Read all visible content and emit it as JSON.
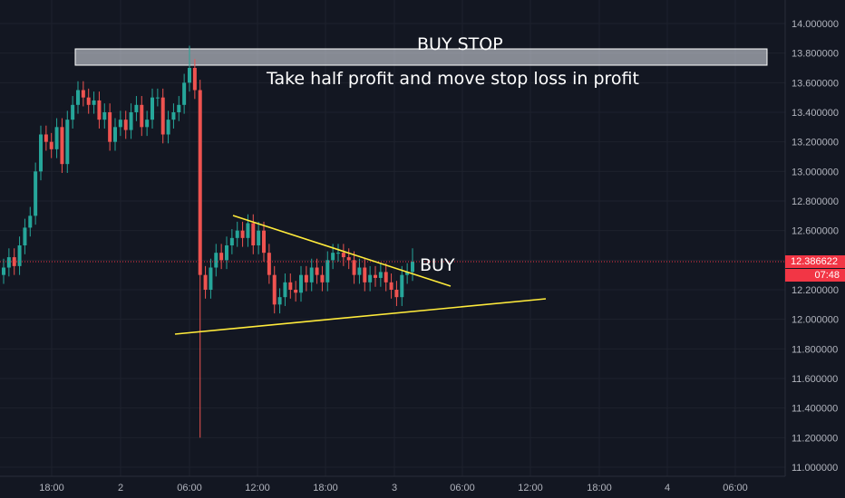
{
  "chart_data": {
    "type": "candlestick",
    "title": "",
    "xlabel": "",
    "ylabel": "",
    "ylim": [
      10.95,
      14.15
    ],
    "y_ticks": [
      "14.000000",
      "13.800000",
      "13.600000",
      "13.400000",
      "13.200000",
      "13.000000",
      "12.800000",
      "12.600000",
      "12.400000",
      "12.200000",
      "12.000000",
      "11.800000",
      "11.600000",
      "11.400000",
      "11.200000",
      "11.000000"
    ],
    "x_ticks": [
      "18:00",
      "2",
      "06:00",
      "12:00",
      "18:00",
      "3",
      "06:00",
      "12:00",
      "18:00",
      "4",
      "06:00"
    ],
    "last_price": "12.386622",
    "countdown": "07:48",
    "colors": {
      "up": "#26a69a",
      "down": "#ef5350",
      "trendline": "#ffeb3b",
      "price_line": "#f23645"
    },
    "candles_close": [
      12.35,
      12.42,
      12.36,
      12.5,
      12.62,
      12.7,
      13.0,
      13.25,
      13.2,
      13.15,
      13.3,
      13.05,
      13.35,
      13.45,
      13.55,
      13.5,
      13.45,
      13.48,
      13.35,
      13.4,
      13.2,
      13.3,
      13.35,
      13.28,
      13.4,
      13.45,
      13.3,
      13.35,
      13.5,
      13.5,
      13.25,
      13.35,
      13.4,
      13.45,
      13.6,
      13.7,
      13.55,
      12.3,
      12.2,
      12.35,
      12.45,
      12.4,
      12.5,
      12.55,
      12.6,
      12.55,
      12.65,
      12.5,
      12.6,
      12.45,
      12.3,
      12.1,
      12.15,
      12.25,
      12.2,
      12.18,
      12.3,
      12.25,
      12.35,
      12.3,
      12.25,
      12.4,
      12.45,
      12.45,
      12.42,
      12.4,
      12.3,
      12.35,
      12.25,
      12.3,
      12.28,
      12.32,
      12.25,
      12.2,
      12.15,
      12.3,
      12.32,
      12.39
    ],
    "annotations": [
      "BUY STOP",
      "Take half profit and move stop loss in profit",
      "BUY"
    ]
  }
}
